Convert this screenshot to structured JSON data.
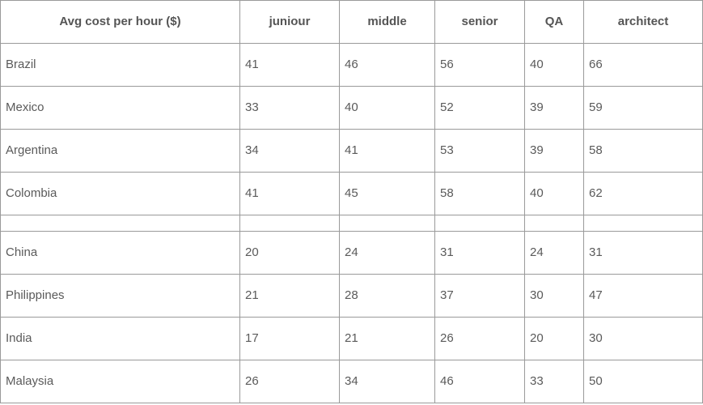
{
  "chart_data": {
    "type": "table",
    "columns": [
      "Avg cost per hour ($)",
      "juniour",
      "middle",
      "senior",
      "QA",
      "architect"
    ],
    "rows": [
      {
        "label": "Brazil",
        "values": [
          "41",
          "46",
          "56",
          "40",
          "66"
        ]
      },
      {
        "label": "Mexico",
        "values": [
          "33",
          "40",
          "52",
          "39",
          "59"
        ]
      },
      {
        "label": "Argentina",
        "values": [
          "34",
          "41",
          "53",
          "39",
          "58"
        ]
      },
      {
        "label": "Colombia",
        "values": [
          "41",
          "45",
          "58",
          "40",
          "62"
        ]
      },
      {
        "label": "",
        "values": [
          "",
          "",
          "",
          "",
          ""
        ],
        "spacer": true
      },
      {
        "label": "China",
        "values": [
          "20",
          "24",
          "31",
          "24",
          "31"
        ]
      },
      {
        "label": "Philippines",
        "values": [
          "21",
          "28",
          "37",
          "30",
          "47"
        ]
      },
      {
        "label": "India",
        "values": [
          "17",
          "21",
          "26",
          "20",
          "30"
        ]
      },
      {
        "label": "Malaysia",
        "values": [
          "26",
          "34",
          "46",
          "33",
          "50"
        ]
      }
    ]
  }
}
